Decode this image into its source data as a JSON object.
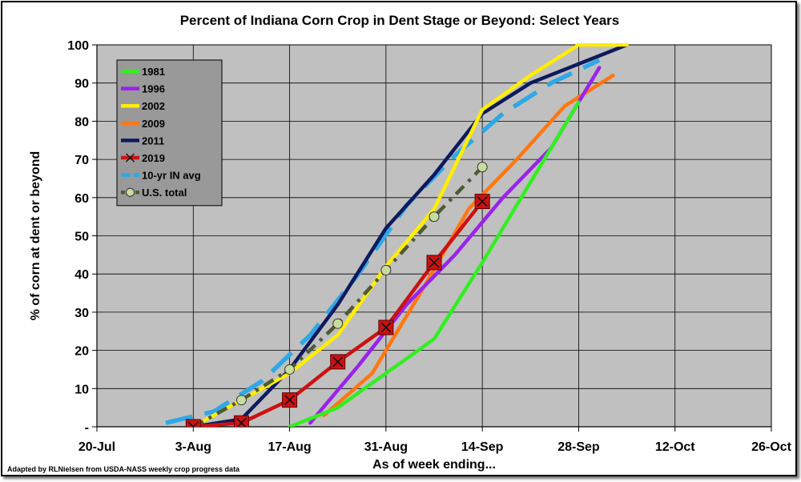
{
  "chart_data": {
    "type": "line",
    "title": "Percent of Indiana Corn Crop in Dent Stage or Beyond: Select Years",
    "xlabel": "As of week ending...",
    "ylabel": "% of corn at dent or beyond",
    "x_ticks": [
      {
        "day": 0,
        "label": "20-Jul"
      },
      {
        "day": 14,
        "label": "3-Aug"
      },
      {
        "day": 28,
        "label": "17-Aug"
      },
      {
        "day": 42,
        "label": "31-Aug"
      },
      {
        "day": 56,
        "label": "14-Sep"
      },
      {
        "day": 70,
        "label": "28-Sep"
      },
      {
        "day": 84,
        "label": "12-Oct"
      },
      {
        "day": 98,
        "label": "26-Oct"
      }
    ],
    "xlim": [
      0,
      98
    ],
    "y_ticks": [
      {
        "value": 0,
        "label": "-"
      },
      {
        "value": 10,
        "label": "10"
      },
      {
        "value": 20,
        "label": "20"
      },
      {
        "value": 30,
        "label": "30"
      },
      {
        "value": 40,
        "label": "40"
      },
      {
        "value": 50,
        "label": "50"
      },
      {
        "value": 60,
        "label": "60"
      },
      {
        "value": 70,
        "label": "70"
      },
      {
        "value": 80,
        "label": "80"
      },
      {
        "value": 90,
        "label": "90"
      },
      {
        "value": 100,
        "label": "100"
      }
    ],
    "ylim": [
      0,
      100
    ],
    "grid": true,
    "legend_position": "top-left",
    "footnote": "Adapted by RLNielsen from USDA-NASS weekly crop progress data",
    "series": [
      {
        "name": "1981",
        "color": "#33ee22",
        "style": "solid",
        "x": [
          28,
          35,
          42,
          49,
          56,
          63,
          70
        ],
        "y": [
          0,
          5,
          14,
          23,
          43,
          64,
          85
        ]
      },
      {
        "name": "1996",
        "color": "#9922ee",
        "style": "solid",
        "x": [
          31,
          38,
          45,
          52,
          59,
          66,
          73
        ],
        "y": [
          1,
          16,
          32,
          45,
          60,
          73,
          94
        ]
      },
      {
        "name": "2002",
        "color": "#ffee00",
        "style": "solid",
        "x": [
          14,
          21,
          28,
          35,
          42,
          49,
          56,
          63,
          70,
          77
        ],
        "y": [
          0,
          7,
          14,
          24,
          42,
          57,
          83,
          92,
          100,
          100
        ]
      },
      {
        "name": "2009",
        "color": "#ff7711",
        "style": "solid",
        "x": [
          33,
          40,
          47,
          54,
          61,
          68,
          75
        ],
        "y": [
          3,
          14,
          35,
          57,
          70,
          84,
          92
        ]
      },
      {
        "name": "2011",
        "color": "#0d1a5e",
        "style": "solid",
        "x": [
          14,
          21,
          28,
          35,
          42,
          49,
          56,
          63,
          70,
          77
        ],
        "y": [
          0,
          2,
          15,
          32,
          52,
          66,
          82,
          90,
          95,
          100
        ]
      },
      {
        "name": "2019",
        "color": "#cc1111",
        "style": "solid-x",
        "x": [
          14,
          21,
          28,
          35,
          42,
          49,
          56
        ],
        "y": [
          0,
          1,
          7,
          17,
          26,
          43,
          59
        ]
      },
      {
        "name": "10-yr IN avg",
        "color": "#2ea8e6",
        "style": "long-dash",
        "x": [
          10,
          17,
          24,
          31,
          38,
          45,
          52,
          59,
          66,
          73
        ],
        "y": [
          1,
          4,
          12,
          24,
          40,
          58,
          71,
          82,
          90,
          96
        ]
      },
      {
        "name": "U.S. total",
        "color": "#4e5a33",
        "style": "dash-dot",
        "marker_color": "#c8dca0",
        "x": [
          14,
          21,
          28,
          35,
          42,
          49,
          56
        ],
        "y": [
          0,
          7,
          15,
          27,
          41,
          55,
          68
        ]
      }
    ]
  }
}
